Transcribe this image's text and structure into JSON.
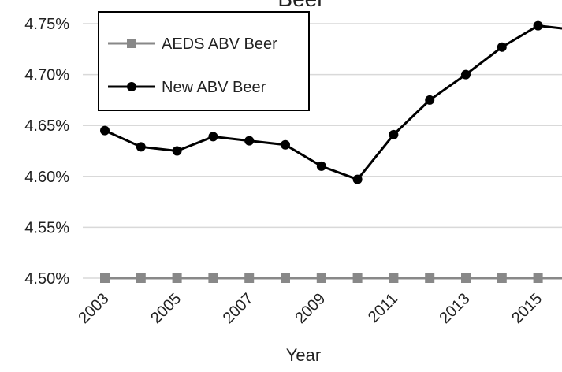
{
  "chart_data": {
    "type": "line",
    "title": "Beer",
    "x_label": "Year",
    "categories": [
      "2003",
      null,
      "2005",
      null,
      "2007",
      null,
      "2009",
      null,
      "2011",
      null,
      "2013",
      null,
      "2015",
      null
    ],
    "series": [
      {
        "name": "AEDS ABV Beer",
        "color": "#888888",
        "marker": "square",
        "values": [
          4.5,
          4.5,
          4.5,
          4.5,
          4.5,
          4.5,
          4.5,
          4.5,
          4.5,
          4.5,
          4.5,
          4.5,
          4.5,
          4.5
        ]
      },
      {
        "name": "New ABV Beer",
        "color": "#000000",
        "marker": "circle",
        "values": [
          4.645,
          4.629,
          4.625,
          4.639,
          4.635,
          4.631,
          4.61,
          4.597,
          4.641,
          4.675,
          4.7,
          4.727,
          4.748,
          4.744
        ]
      }
    ],
    "ylim": [
      4.5,
      4.75
    ],
    "yticks": [
      {
        "value": 4.5,
        "label": "4.50%"
      },
      {
        "value": 4.55,
        "label": "4.55%"
      },
      {
        "value": 4.6,
        "label": "4.60%"
      },
      {
        "value": 4.65,
        "label": "4.65%"
      },
      {
        "value": 4.7,
        "label": "4.70%"
      },
      {
        "value": 4.75,
        "label": "4.75%"
      }
    ],
    "grid": true,
    "legend": "upper left"
  }
}
